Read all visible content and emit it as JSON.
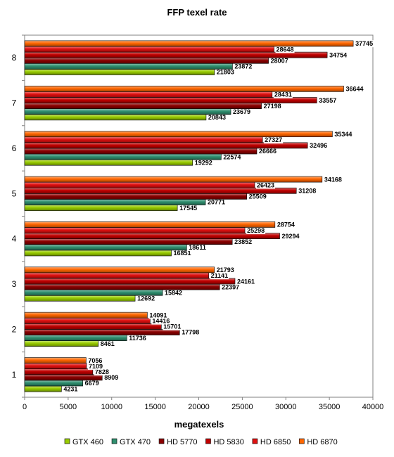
{
  "chart_data": {
    "type": "bar",
    "orientation": "horizontal",
    "title": "FFP texel rate",
    "xlabel": "megatexels",
    "ylabel": "",
    "xlim": [
      0,
      40000
    ],
    "x_ticks": [
      0,
      5000,
      10000,
      15000,
      20000,
      25000,
      30000,
      35000,
      40000
    ],
    "categories": [
      "1",
      "2",
      "3",
      "4",
      "5",
      "6",
      "7",
      "8"
    ],
    "grid": false,
    "legend_position": "bottom",
    "series": [
      {
        "name": "GTX 460",
        "color": "#99cc00",
        "values": [
          4231,
          8461,
          12692,
          16851,
          17545,
          19292,
          20843,
          21803
        ]
      },
      {
        "name": "GTX 470",
        "color": "#2f8f6f",
        "values": [
          6679,
          11736,
          15842,
          18611,
          20771,
          22574,
          23679,
          23872
        ]
      },
      {
        "name": "HD 5770",
        "color": "#8b0000",
        "values": [
          8909,
          17798,
          22397,
          23852,
          25509,
          26666,
          27198,
          28007
        ]
      },
      {
        "name": "HD 5830",
        "color": "#c00000",
        "values": [
          7828,
          15701,
          24161,
          29294,
          31208,
          32496,
          33557,
          34754
        ]
      },
      {
        "name": "HD 6850",
        "color": "#e01010",
        "values": [
          7109,
          14416,
          21141,
          25298,
          26423,
          27327,
          28431,
          28648
        ]
      },
      {
        "name": "HD 6870",
        "color": "#ff6600",
        "values": [
          7056,
          14091,
          21793,
          28754,
          34168,
          35344,
          36644,
          37745
        ]
      }
    ]
  }
}
